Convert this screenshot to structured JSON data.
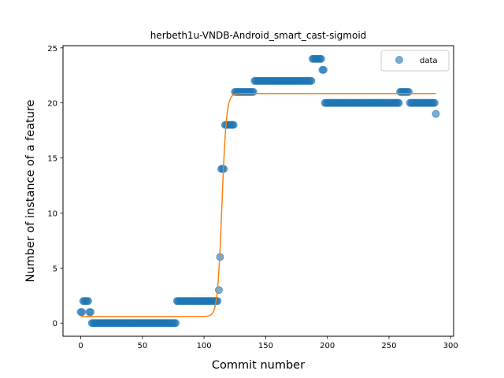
{
  "chart_data": {
    "type": "scatter",
    "title": "herbeth1u-VNDB-Android_smart_cast-sigmoid",
    "xlabel": "Commit number",
    "ylabel": "Number of instance of a feature",
    "xlim": [
      -14.4,
      302.4
    ],
    "ylim": [
      -1.2,
      25.2
    ],
    "xticks": [
      0,
      50,
      100,
      150,
      200,
      250,
      300
    ],
    "yticks": [
      0,
      5,
      10,
      15,
      20,
      25
    ],
    "grid": false,
    "legend_position": "top-right",
    "series": [
      {
        "name": "data",
        "kind": "scatter",
        "color": "#1f77b4",
        "segments": [
          {
            "x": [
              0,
              1
            ],
            "y": 1
          },
          {
            "x": [
              2,
              6
            ],
            "y": 2
          },
          {
            "x": [
              7,
              8
            ],
            "y": 1
          },
          {
            "x": [
              9,
              77
            ],
            "y": 0
          },
          {
            "x": [
              78,
              111
            ],
            "y": 2
          },
          {
            "x": [
              112,
              112
            ],
            "y": 3
          },
          {
            "x": [
              113,
              113
            ],
            "y": 6
          },
          {
            "x": [
              114,
              116
            ],
            "y": 14
          },
          {
            "x": [
              117,
              124
            ],
            "y": 18
          },
          {
            "x": [
              125,
              140
            ],
            "y": 21
          },
          {
            "x": [
              141,
              187
            ],
            "y": 22
          },
          {
            "x": [
              188,
              195
            ],
            "y": 24
          },
          {
            "x": [
              196,
              197
            ],
            "y": 23
          },
          {
            "x": [
              198,
              258
            ],
            "y": 20
          },
          {
            "x": [
              259,
              266
            ],
            "y": 21
          },
          {
            "x": [
              267,
              287
            ],
            "y": 20
          },
          {
            "x": [
              288,
              288
            ],
            "y": 19
          }
        ]
      },
      {
        "kind": "line",
        "color": "#ff7f0e",
        "model": "sigmoid",
        "lower": 0.6,
        "upper": 20.85,
        "midpoint": 114.5,
        "rate": 0.55,
        "x_range": [
          0,
          288
        ]
      }
    ]
  }
}
